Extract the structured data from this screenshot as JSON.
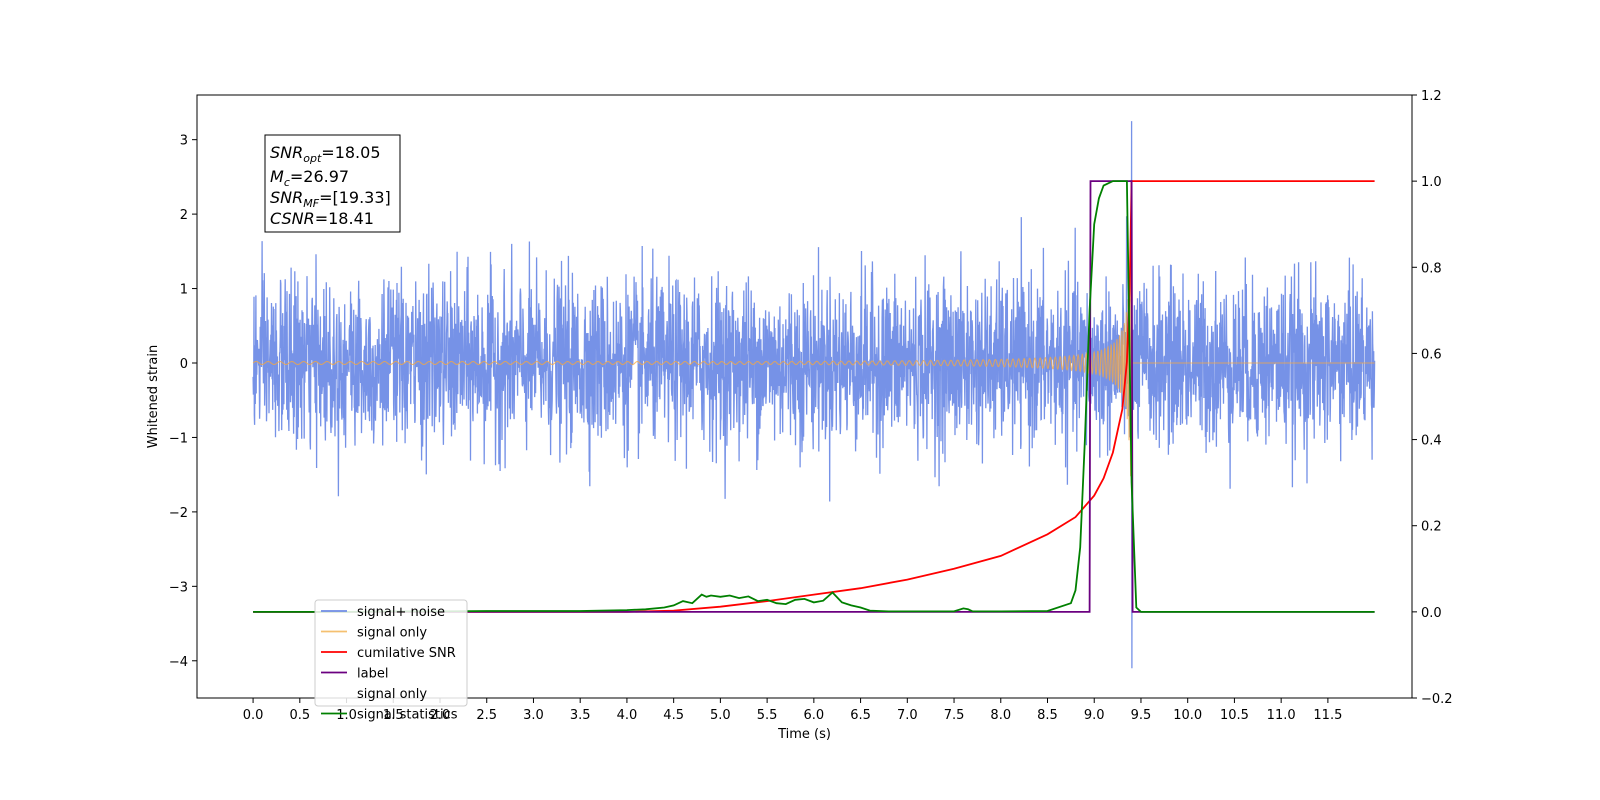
{
  "chart_data": {
    "type": "line",
    "xlabel": "Time (s)",
    "ylabel_left": "Whitened strain",
    "ylabel_right": "",
    "xlim": [
      -0.6,
      12.4
    ],
    "ylim_left": [
      -4.5,
      3.6
    ],
    "ylim_right": [
      -0.2,
      1.2
    ],
    "x_ticks": [
      0.0,
      0.5,
      1.0,
      1.5,
      2.0,
      2.5,
      3.0,
      3.5,
      4.0,
      4.5,
      5.0,
      5.5,
      6.0,
      6.5,
      7.0,
      7.5,
      8.0,
      8.5,
      9.0,
      9.5,
      10.0,
      10.5,
      11.0,
      11.5
    ],
    "x_tick_labels": [
      "0.0",
      "0.5",
      "1.0",
      "1.5",
      "2.0",
      "2.5",
      "3.0",
      "3.5",
      "4.0",
      "4.5",
      "5.0",
      "5.5",
      "6.0",
      "6.5",
      "7.0",
      "7.5",
      "8.0",
      "8.5",
      "9.0",
      "9.5",
      "10.0",
      "10.5",
      "11.0",
      "11.5"
    ],
    "y_left_ticks": [
      -4,
      -3,
      -2,
      -1,
      0,
      1,
      2,
      3
    ],
    "y_left_tick_labels": [
      "−4",
      "−3",
      "−2",
      "−1",
      "0",
      "1",
      "2",
      "3"
    ],
    "y_right_ticks": [
      -0.2,
      0.0,
      0.2,
      0.4,
      0.6,
      0.8,
      1.0,
      1.2
    ],
    "y_right_tick_labels": [
      "−0.2",
      "0.0",
      "0.2",
      "0.4",
      "0.6",
      "0.8",
      "1.0",
      "1.2"
    ],
    "grid": false,
    "legend_placement": "lower-left",
    "series": [
      {
        "name": "signal+ noise",
        "axis": "left",
        "color": "#6f8ce6",
        "x_range": [
          0.0,
          12.0
        ],
        "noise_std": 0.55,
        "peak": {
          "x": 9.4,
          "y_max": 3.25,
          "y_min": -4.1
        }
      },
      {
        "name": "signal only",
        "axis": "left",
        "color": "#f5a742",
        "x_range": [
          0.0,
          12.0
        ],
        "chirp": {
          "t_merge": 9.4,
          "amplitude_at_merge": 2.7,
          "amplitude_early": 0.03
        }
      },
      {
        "name": "cumilative SNR",
        "axis": "right",
        "color": "#ff0000",
        "x": [
          0.0,
          4.0,
          4.5,
          5.0,
          5.5,
          6.0,
          6.5,
          7.0,
          7.5,
          8.0,
          8.5,
          8.8,
          9.0,
          9.1,
          9.2,
          9.3,
          9.35,
          9.38,
          9.4,
          9.42,
          12.0
        ],
        "y": [
          0.0,
          0.0,
          0.003,
          0.012,
          0.025,
          0.04,
          0.055,
          0.075,
          0.1,
          0.13,
          0.18,
          0.22,
          0.27,
          0.31,
          0.37,
          0.47,
          0.58,
          0.75,
          1.0,
          1.0,
          1.0
        ]
      },
      {
        "name": "label",
        "axis": "right",
        "color": "#6b0080",
        "x": [
          0.0,
          8.95,
          8.96,
          9.4,
          9.41,
          12.0
        ],
        "y": [
          0.0,
          0.0,
          1.0,
          1.0,
          0.0,
          0.0
        ]
      },
      {
        "name": "signal only",
        "axis": "right",
        "color": "#ffffff",
        "legend_only": true
      },
      {
        "name": "signal statistics",
        "axis": "right",
        "color": "#008000",
        "x": [
          0.0,
          0.5,
          1.0,
          1.5,
          2.0,
          2.5,
          3.0,
          3.5,
          4.0,
          4.2,
          4.4,
          4.5,
          4.6,
          4.7,
          4.8,
          4.85,
          4.9,
          5.0,
          5.1,
          5.2,
          5.3,
          5.4,
          5.5,
          5.6,
          5.7,
          5.8,
          5.9,
          6.0,
          6.1,
          6.2,
          6.3,
          6.4,
          6.5,
          6.6,
          6.8,
          7.0,
          7.5,
          7.6,
          7.65,
          7.7,
          8.0,
          8.5,
          8.75,
          8.8,
          8.85,
          8.9,
          8.95,
          9.0,
          9.05,
          9.1,
          9.2,
          9.3,
          9.35,
          9.4,
          9.45,
          9.5,
          12.0
        ],
        "y": [
          0.0,
          0.0,
          0.0,
          0.001,
          0.001,
          0.002,
          0.002,
          0.002,
          0.004,
          0.006,
          0.01,
          0.015,
          0.025,
          0.02,
          0.04,
          0.035,
          0.038,
          0.035,
          0.038,
          0.032,
          0.036,
          0.025,
          0.028,
          0.02,
          0.018,
          0.028,
          0.03,
          0.022,
          0.026,
          0.045,
          0.022,
          0.015,
          0.01,
          0.003,
          0.001,
          0.001,
          0.001,
          0.008,
          0.006,
          0.001,
          0.001,
          0.002,
          0.02,
          0.05,
          0.15,
          0.4,
          0.7,
          0.9,
          0.96,
          0.99,
          1.0,
          1.0,
          1.0,
          0.3,
          0.01,
          0.0,
          0.0
        ]
      }
    ],
    "legend_entries": [
      {
        "name": "signal+ noise",
        "color": "#6f8ce6"
      },
      {
        "name": "signal only",
        "color": "#f5c070"
      },
      {
        "name": "cumilative SNR",
        "color": "#ff0000"
      },
      {
        "name": "label",
        "color": "#6b0080"
      },
      {
        "name": "signal only",
        "color": "#9a9a9a",
        "faded": true
      },
      {
        "name": "signal statistics",
        "color": "#008000"
      }
    ],
    "annotation": {
      "snr_opt": {
        "main": "SNR",
        "sub": "opt",
        "value": "=18.05"
      },
      "mc": {
        "main": "M",
        "sub": "c",
        "value": "=26.97"
      },
      "snr_mf": {
        "main": "SNR",
        "sub": "MF",
        "value": "=[19.33]"
      },
      "csnr": {
        "main": "CSNR",
        "sub": "",
        "value": "=18.41"
      }
    }
  }
}
